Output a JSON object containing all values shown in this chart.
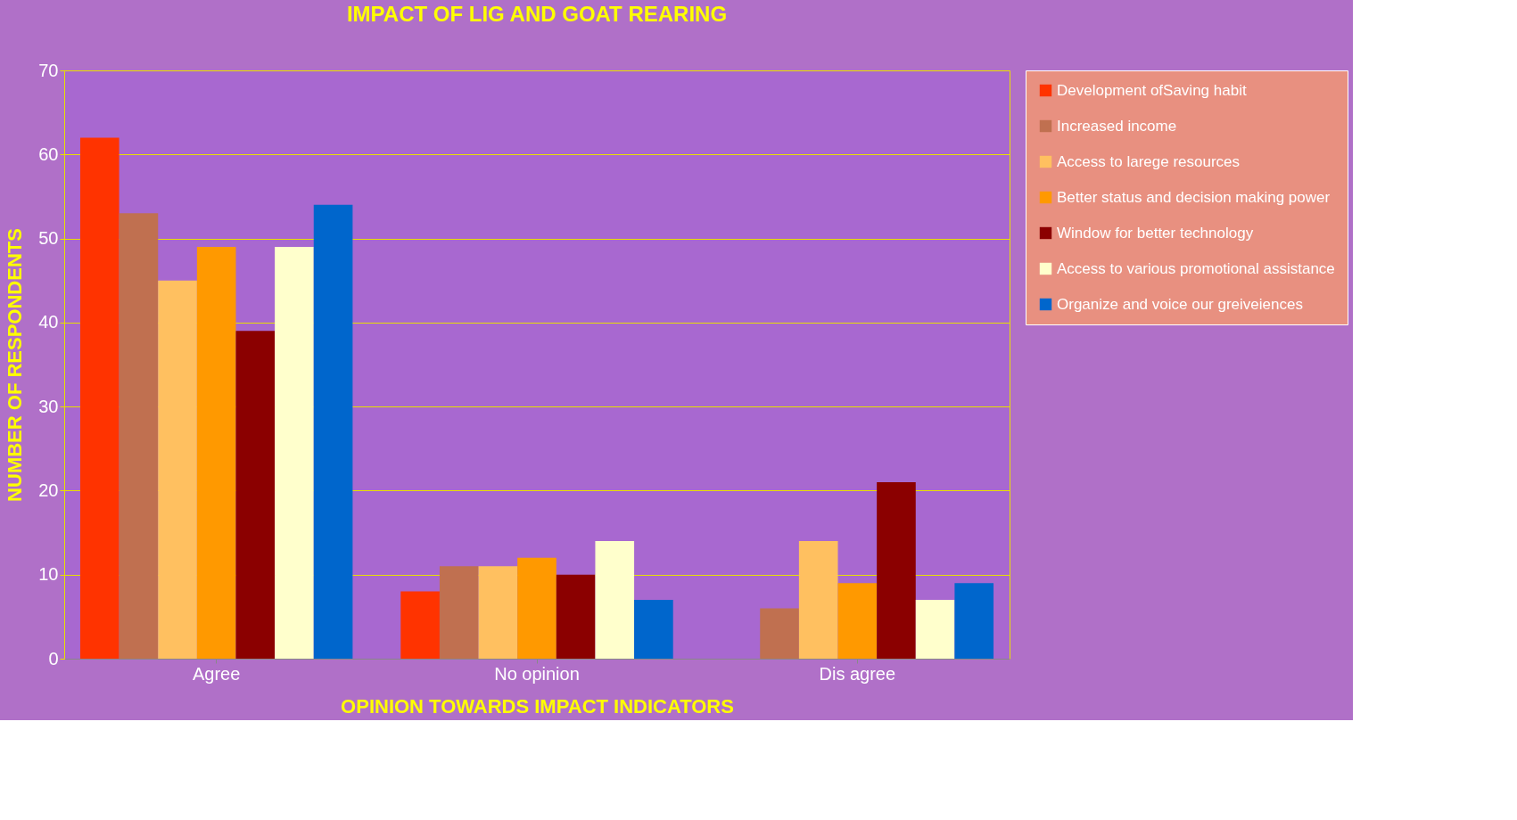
{
  "chart_data": {
    "type": "bar",
    "title": "IMPACT OF LIG AND GOAT REARING",
    "xlabel": "OPINION TOWARDS IMPACT INDICATORS",
    "ylabel": "NUMBER OF RESPONDENTS",
    "categories": [
      "Agree",
      "No opinion",
      "Dis agree"
    ],
    "series": [
      {
        "name": "Development ofSaving habit",
        "color": "#ff3300",
        "values": [
          62,
          8,
          0
        ]
      },
      {
        "name": "Increased income",
        "color": "#c07050",
        "values": [
          53,
          11,
          6
        ]
      },
      {
        "name": "Access to larege resources",
        "color": "#ffc060",
        "values": [
          45,
          11,
          14
        ]
      },
      {
        "name": "Better status and decision making power",
        "color": "#ff9900",
        "values": [
          49,
          12,
          9
        ]
      },
      {
        "name": "Window for better technology",
        "color": "#8b0000",
        "values": [
          39,
          10,
          21
        ]
      },
      {
        "name": "Access to various promotional assistance",
        "color": "#ffffcc",
        "values": [
          49,
          14,
          7
        ]
      },
      {
        "name": "Organize and voice our greiveiences",
        "color": "#0066cc",
        "values": [
          54,
          7,
          9
        ]
      }
    ],
    "ylim": [
      0,
      70
    ],
    "yticks": [
      0,
      10,
      20,
      30,
      40,
      50,
      60,
      70
    ],
    "grid": "y",
    "legend": "right"
  }
}
